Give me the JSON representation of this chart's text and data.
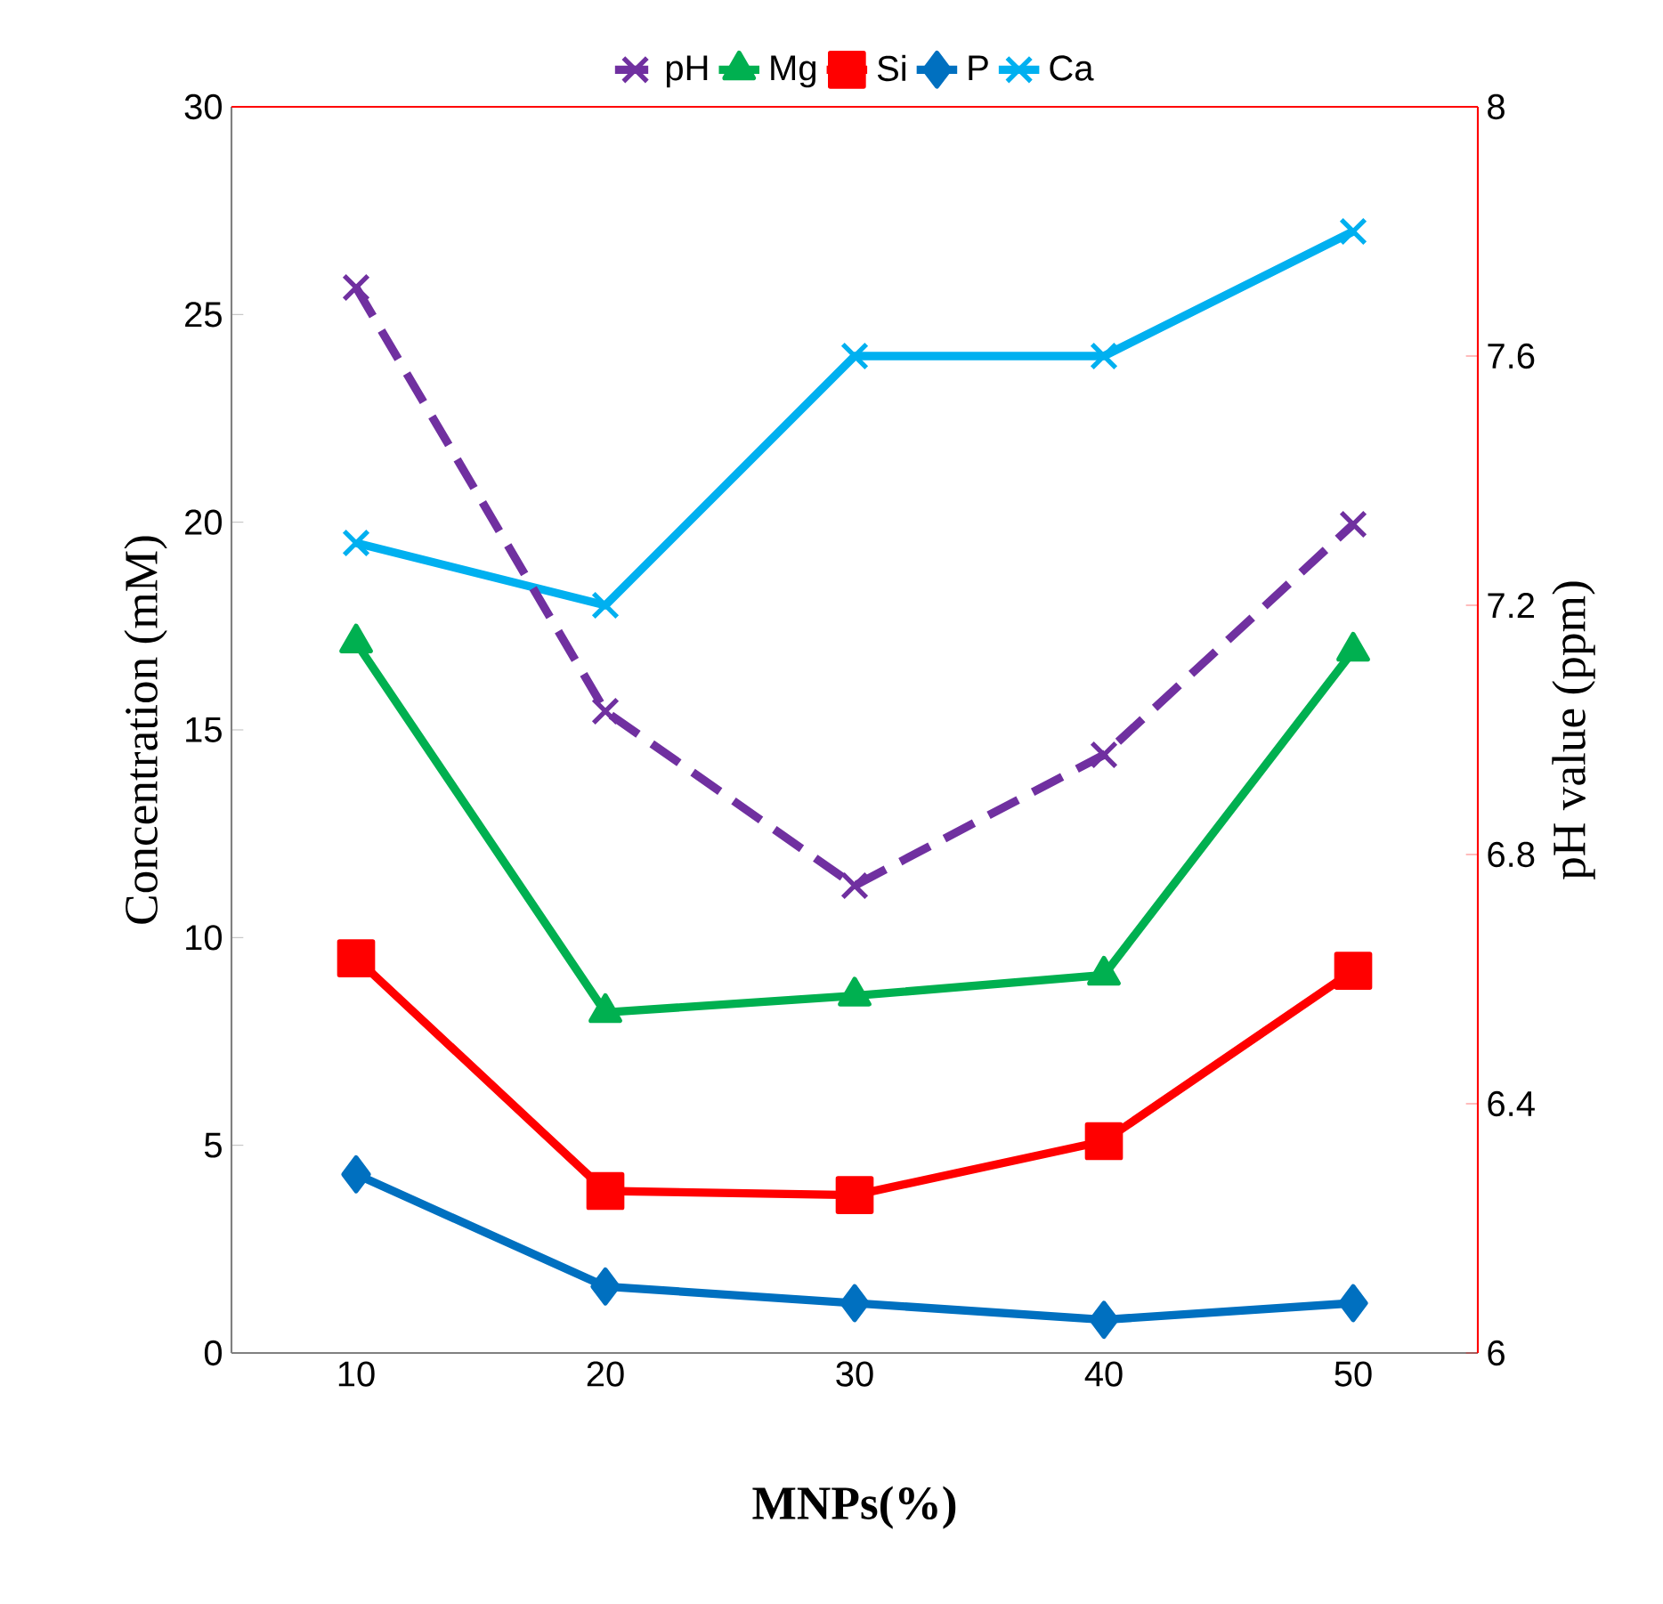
{
  "chart_data": {
    "type": "line",
    "xlabel": "**MNPs(%)**",
    "ylabel": "Concentration (mM)",
    "y2label": "pH value (ppm)",
    "categories": [
      "10",
      "20",
      "30",
      "40",
      "50"
    ],
    "series": [
      {
        "name": "pH",
        "color": "#7030a0",
        "values": [
          7.71,
          7.03,
          6.75,
          6.96,
          7.33
        ],
        "axis": "y2",
        "marker": "cross",
        "line_style": "dashed"
      },
      {
        "name": "Mg",
        "color": "#00b050",
        "values": [
          17.1,
          8.2,
          8.6,
          9.1,
          16.9
        ],
        "marker": "triangle",
        "line_style": "solid"
      },
      {
        "name": "Si",
        "color": "#ff0000",
        "values": [
          9.5,
          3.9,
          3.8,
          5.1,
          9.2
        ],
        "marker": "square",
        "line_style": "solid"
      },
      {
        "name": "P",
        "color": "#0070c0",
        "values": [
          4.3,
          1.6,
          1.2,
          0.8,
          1.2
        ],
        "marker": "diamond",
        "line_style": "solid"
      },
      {
        "name": "Ca",
        "color": "#00b0f0",
        "values": [
          19.5,
          18.0,
          24.0,
          24.0,
          27.0
        ],
        "marker": "cross",
        "line_style": "solid"
      }
    ],
    "ylim": [
      0,
      30
    ],
    "yticks": [
      0,
      5,
      10,
      15,
      20,
      25,
      30
    ],
    "y2lim": [
      6,
      8
    ],
    "y2ticks": [
      6,
      6.4,
      6.8,
      7.2,
      7.6,
      8
    ],
    "legend": "top",
    "grid": false
  }
}
